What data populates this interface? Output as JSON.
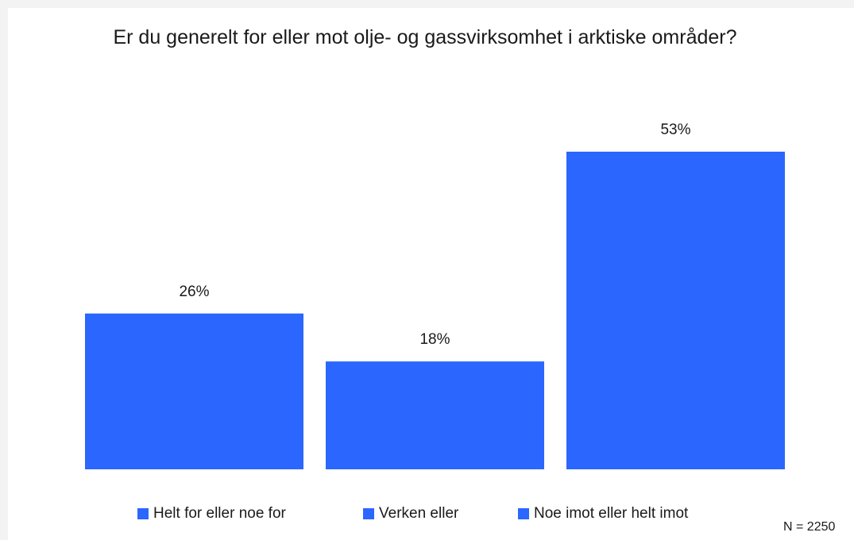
{
  "chart_data": {
    "type": "bar",
    "title": "Er du generelt for eller mot olje- og gassvirksomhet i arktiske områder?",
    "categories": [
      "Helt for eller noe for",
      "Verken eller",
      "Noe imot eller helt imot"
    ],
    "values": [
      26,
      18,
      53
    ],
    "value_labels": [
      "26%",
      "18%",
      "53%"
    ],
    "color": "#2b66fe",
    "legend": "bottom",
    "annotation": "N = 2250"
  }
}
